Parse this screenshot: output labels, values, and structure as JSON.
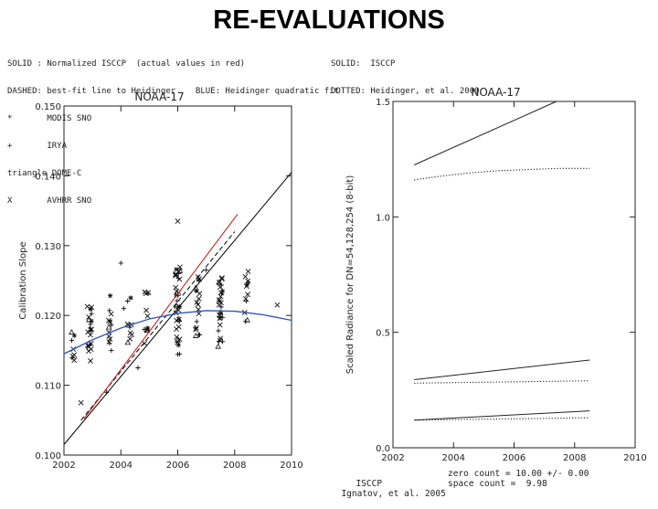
{
  "slide": {
    "title": "RE-EVALUATIONS"
  },
  "legend_left": [
    "SOLID : Normalized ISCCP  (actual values in red)",
    "DASHED: best-fit line to Heidinger    BLUE: Heidinger quadratic fit",
    "*       MODIS SNO",
    "+       IRYA",
    "triangle DOME-C",
    "X       AVHRR SNO"
  ],
  "legend_right": [
    "SOLID:  ISCCP",
    "DOTTED: Heidinger, et al. 2009"
  ],
  "footer": {
    "line1_left": "ISCCP",
    "line1_right": "zero count = 10.00 +/- 0.00",
    "line2_left": "Ignatov, et al. 2005",
    "line2_right": "space count =  9.98"
  },
  "chart_data": [
    {
      "type": "scatter",
      "title": "NOAA-17",
      "ylabel": "Calibration Slope",
      "xlabel": "",
      "xlim": [
        2002,
        2010
      ],
      "ylim": [
        0.1,
        0.15
      ],
      "x_ticks": [
        "2002",
        "2004",
        "2006",
        "2008",
        "2010"
      ],
      "y_ticks": [
        "0.100",
        "0.110",
        "0.120",
        "0.130",
        "0.140",
        "0.150"
      ],
      "colors": {
        "solid": "#000000",
        "red": "#cc2222",
        "blue": "#3355bb",
        "points": "#111111"
      },
      "lines": {
        "solid_normalized_isccp": {
          "x": [
            2002.0,
            2010.0
          ],
          "y": [
            0.1015,
            0.1405
          ]
        },
        "solid_actual_red": {
          "x": [
            2002.7,
            2008.1
          ],
          "y": [
            0.1052,
            0.1345
          ]
        },
        "dashed_best_fit": {
          "x": [
            2002.6,
            2008.0
          ],
          "y": [
            0.105,
            0.132
          ]
        },
        "blue_quadratic_fit": {
          "x": [
            2002.0,
            2003.0,
            2004.0,
            2005.0,
            2006.0,
            2007.0,
            2008.0,
            2009.0,
            2010.0
          ],
          "y": [
            0.1145,
            0.1165,
            0.1182,
            0.1195,
            0.1203,
            0.1207,
            0.1206,
            0.1201,
            0.1193
          ]
        }
      },
      "clusters": [
        {
          "x": 2002.9,
          "y_center": 0.1175,
          "y_spread": 0.0045,
          "n": 22
        },
        {
          "x": 2003.6,
          "y_center": 0.119,
          "y_spread": 0.0045,
          "n": 14
        },
        {
          "x": 2004.3,
          "y_center": 0.1195,
          "y_spread": 0.004,
          "n": 10
        },
        {
          "x": 2004.9,
          "y_center": 0.12,
          "y_spread": 0.004,
          "n": 12
        },
        {
          "x": 2006.0,
          "y_center": 0.1205,
          "y_spread": 0.0065,
          "n": 34
        },
        {
          "x": 2006.7,
          "y_center": 0.1215,
          "y_spread": 0.0045,
          "n": 18
        },
        {
          "x": 2007.5,
          "y_center": 0.1205,
          "y_spread": 0.005,
          "n": 28
        },
        {
          "x": 2008.4,
          "y_center": 0.1225,
          "y_spread": 0.004,
          "n": 12
        },
        {
          "x": 2002.3,
          "y_center": 0.1155,
          "y_spread": 0.0025,
          "n": 8
        }
      ],
      "outliers": [
        {
          "x": 2006.0,
          "y": 0.1335,
          "m": "x"
        },
        {
          "x": 2004.0,
          "y": 0.1275,
          "m": "+"
        },
        {
          "x": 2004.1,
          "y": 0.121,
          "m": "+"
        },
        {
          "x": 2007.0,
          "y": 0.1265,
          "m": "+"
        },
        {
          "x": 2002.6,
          "y": 0.1075,
          "m": "x"
        },
        {
          "x": 2009.5,
          "y": 0.1215,
          "m": "x"
        },
        {
          "x": 2003.5,
          "y": 0.109,
          "m": "+"
        },
        {
          "x": 2004.6,
          "y": 0.1125,
          "m": "+"
        }
      ]
    },
    {
      "type": "line",
      "title": "NOAA-17",
      "ylabel": "Scaled Radiance for DN=54,128,254 (8-bit)",
      "xlabel": "",
      "xlim": [
        2002,
        2010
      ],
      "ylim": [
        0.0,
        1.5
      ],
      "x_ticks": [
        "2002",
        "2004",
        "2006",
        "2008",
        "2010"
      ],
      "y_ticks": [
        "0.0",
        "0.5",
        "1.0",
        "1.5"
      ],
      "series": [
        {
          "style": "solid",
          "x": [
            2002.7,
            2007.4
          ],
          "y": [
            1.225,
            1.5
          ]
        },
        {
          "style": "dotted",
          "x": [
            2002.7,
            2003.5,
            2004.5,
            2005.5,
            2006.5,
            2007.5,
            2008.5
          ],
          "y": [
            1.16,
            1.175,
            1.19,
            1.2,
            1.205,
            1.21,
            1.21
          ]
        },
        {
          "style": "solid",
          "x": [
            2002.7,
            2008.5
          ],
          "y": [
            0.295,
            0.38
          ]
        },
        {
          "style": "dotted",
          "x": [
            2002.7,
            2008.5
          ],
          "y": [
            0.28,
            0.29
          ]
        },
        {
          "style": "solid",
          "x": [
            2002.7,
            2008.5
          ],
          "y": [
            0.12,
            0.16
          ]
        },
        {
          "style": "dotted",
          "x": [
            2002.7,
            2008.5
          ],
          "y": [
            0.12,
            0.13
          ]
        }
      ]
    }
  ]
}
